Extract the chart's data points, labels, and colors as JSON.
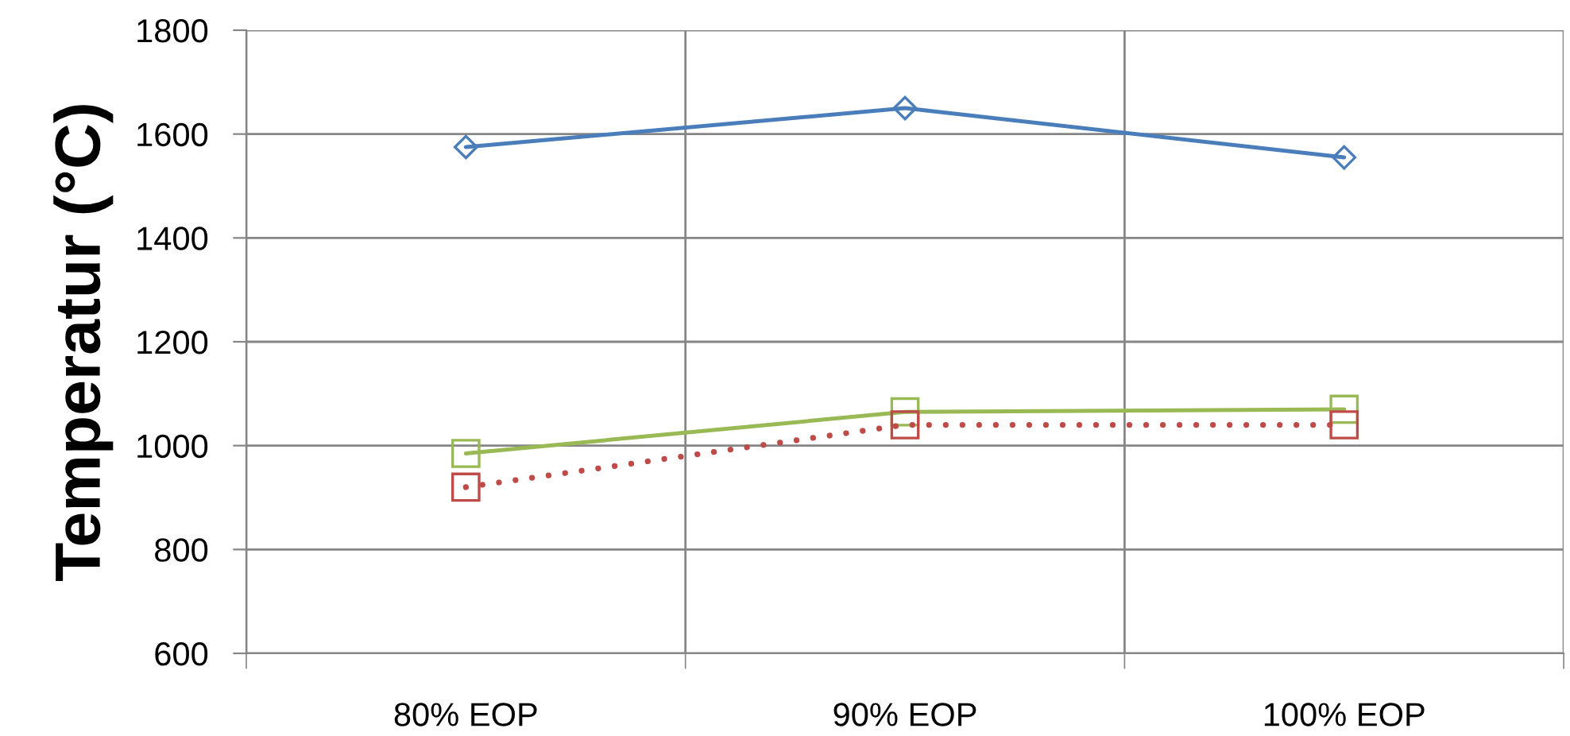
{
  "chart_data": {
    "type": "line",
    "categories": [
      "80% EOP",
      "90% EOP",
      "100% EOP"
    ],
    "ylabel": "Temperatur (°C)",
    "ylim": [
      600,
      1800
    ],
    "yticks": [
      600,
      800,
      1000,
      1200,
      1400,
      1600,
      1800
    ],
    "grid": true,
    "series": [
      {
        "color": "#4a7ebb",
        "values": [
          1575,
          1650,
          1555
        ],
        "marker": "diamond",
        "line_style": "solid"
      },
      {
        "color": "#98b954",
        "values": [
          985,
          1065,
          1070
        ],
        "marker": "square",
        "line_style": "solid"
      },
      {
        "color": "#be4b48",
        "values": [
          920,
          1040,
          1040
        ],
        "marker": "square",
        "line_style": "dotted"
      }
    ]
  }
}
